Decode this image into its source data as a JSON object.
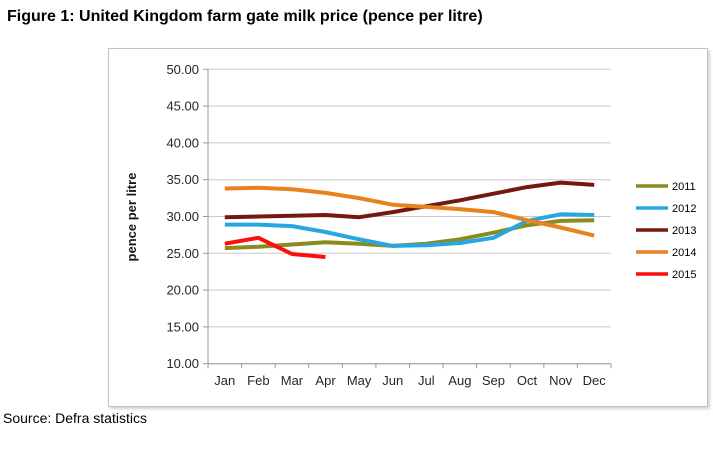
{
  "title": "Figure 1: United Kingdom farm gate milk price (pence per litre)",
  "source": "Source: Defra statistics",
  "colors": {
    "gridline": "#c9c9c9",
    "axis": "#9a9a9a",
    "frame_border": "#c3c3c3",
    "tick_text": "#262626"
  },
  "chart_data": {
    "type": "line",
    "title": "",
    "xlabel": "",
    "ylabel": "pence per litre",
    "ylim": [
      10,
      50
    ],
    "grid": true,
    "legend_position": "right",
    "categories": [
      "Jan",
      "Feb",
      "Mar",
      "Apr",
      "May",
      "Jun",
      "Jul",
      "Aug",
      "Sep",
      "Oct",
      "Nov",
      "Dec"
    ],
    "y_ticks": [
      "50.00",
      "45.00",
      "40.00",
      "35.00",
      "30.00",
      "25.00",
      "20.00",
      "15.00",
      "10.00"
    ],
    "series": [
      {
        "name": "2011",
        "color": "#8b8b1d",
        "values": [
          25.7,
          25.9,
          26.2,
          26.5,
          26.3,
          26.0,
          26.3,
          26.9,
          27.8,
          28.8,
          29.4,
          29.5
        ]
      },
      {
        "name": "2012",
        "color": "#27a7df",
        "values": [
          28.9,
          28.9,
          28.7,
          27.9,
          26.9,
          26.0,
          26.1,
          26.4,
          27.1,
          29.4,
          30.3,
          30.2
        ]
      },
      {
        "name": "2013",
        "color": "#731a10",
        "values": [
          29.9,
          30.0,
          30.1,
          30.2,
          29.9,
          30.6,
          31.4,
          32.2,
          33.1,
          34.0,
          34.6,
          34.3
        ]
      },
      {
        "name": "2014",
        "color": "#e8821e",
        "values": [
          33.8,
          33.9,
          33.7,
          33.2,
          32.5,
          31.6,
          31.3,
          31.0,
          30.6,
          29.5,
          28.5,
          27.4
        ]
      },
      {
        "name": "2015",
        "color": "#fb0f0c",
        "values": [
          26.3,
          27.1,
          24.9,
          24.5
        ]
      }
    ]
  }
}
